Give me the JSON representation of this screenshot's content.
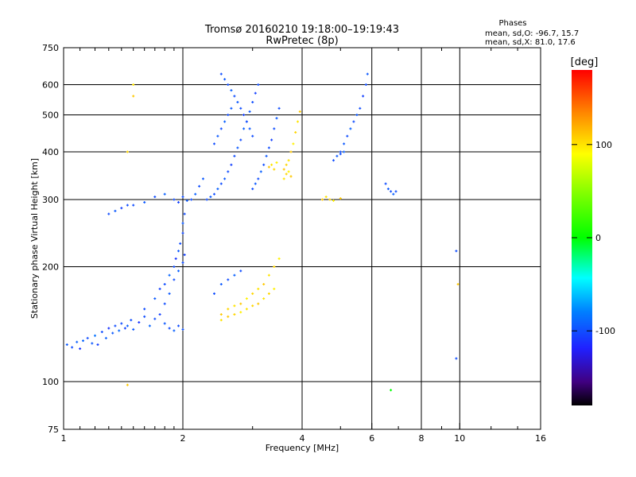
{
  "header": {
    "title_line1": "Tromsø 20160210 19:18:00–19:19:43",
    "title_line2": "RwPretec (8p)",
    "stats_title": "Phases",
    "stats_o": "mean, sd,O: -96.7, 15.7",
    "stats_x": "mean, sd,X:  81.0, 17.6"
  },
  "chart_data": {
    "type": "scatter",
    "title": "Tromsø 20160210 19:18:00–19:19:43",
    "subtitle": "RwPretec (8p)",
    "xlabel": "Frequency [MHz]",
    "ylabel": "Stationary phase Virtual Height [km]",
    "x_scale": "log",
    "y_scale": "log",
    "xlim": [
      1,
      16
    ],
    "ylim": [
      75,
      750
    ],
    "x_ticks": [
      1,
      2,
      4,
      6,
      8,
      10,
      16
    ],
    "x_tick_labels": [
      "1",
      "2",
      "4",
      "6",
      "8",
      "10",
      "16"
    ],
    "x_minor_ticks": [
      1.1,
      1.2,
      1.3,
      1.4,
      1.5,
      1.6,
      1.7,
      1.8,
      1.9,
      3,
      5,
      7,
      9,
      12,
      14
    ],
    "y_ticks": [
      75,
      100,
      200,
      300,
      400,
      500,
      600,
      750
    ],
    "y_tick_labels": [
      "75",
      "100",
      "200",
      "300",
      "400",
      "500",
      "600",
      "750"
    ],
    "grid": true,
    "colorbar": {
      "label": "[deg]",
      "range": [
        -180,
        180
      ],
      "ticks": [
        100,
        0,
        -100
      ],
      "tick_labels": [
        "100",
        "0",
        "-100"
      ]
    },
    "series": [
      {
        "name": "O-mode",
        "phase_mean": -96.7,
        "phase_sd": 15.7
      },
      {
        "name": "X-mode",
        "phase_mean": 81.0,
        "phase_sd": 17.6
      }
    ],
    "points": [
      [
        1.02,
        125,
        -95
      ],
      [
        1.05,
        123,
        -100
      ],
      [
        1.08,
        127,
        -92
      ],
      [
        1.1,
        122,
        -110
      ],
      [
        1.12,
        128,
        -90
      ],
      [
        1.15,
        130,
        -100
      ],
      [
        1.18,
        126,
        -95
      ],
      [
        1.2,
        132,
        -85
      ],
      [
        1.22,
        125,
        -105
      ],
      [
        1.25,
        135,
        -100
      ],
      [
        1.28,
        130,
        -92
      ],
      [
        1.3,
        138,
        -110
      ],
      [
        1.33,
        134,
        -95
      ],
      [
        1.35,
        140,
        -100
      ],
      [
        1.38,
        136,
        -88
      ],
      [
        1.4,
        142,
        -100
      ],
      [
        1.43,
        138,
        -105
      ],
      [
        1.45,
        140,
        -92
      ],
      [
        1.48,
        145,
        -100
      ],
      [
        1.5,
        137,
        -95
      ],
      [
        1.55,
        143,
        -110
      ],
      [
        1.6,
        148,
        -100
      ],
      [
        1.65,
        140,
        -90
      ],
      [
        1.7,
        146,
        -100
      ],
      [
        1.75,
        150,
        -105
      ],
      [
        1.8,
        142,
        -95
      ],
      [
        1.85,
        138,
        -100
      ],
      [
        1.9,
        136,
        -92
      ],
      [
        1.95,
        140,
        -100
      ],
      [
        2.0,
        137,
        -98
      ],
      [
        1.6,
        155,
        -100
      ],
      [
        1.7,
        165,
        -95
      ],
      [
        1.75,
        175,
        -105
      ],
      [
        1.8,
        180,
        -100
      ],
      [
        1.85,
        190,
        -90
      ],
      [
        1.9,
        200,
        -100
      ],
      [
        1.92,
        210,
        -110
      ],
      [
        1.95,
        220,
        -95
      ],
      [
        1.97,
        230,
        -100
      ],
      [
        2.0,
        245,
        -102
      ],
      [
        2.0,
        260,
        -95
      ],
      [
        2.02,
        275,
        -100
      ],
      [
        1.8,
        160,
        -100
      ],
      [
        1.85,
        170,
        -95
      ],
      [
        1.9,
        185,
        -100
      ],
      [
        1.95,
        195,
        -92
      ],
      [
        2.0,
        205,
        -100
      ],
      [
        2.02,
        215,
        -105
      ],
      [
        1.5,
        290,
        -100
      ],
      [
        1.6,
        295,
        -95
      ],
      [
        1.7,
        305,
        -100
      ],
      [
        1.8,
        310,
        -92
      ],
      [
        1.9,
        300,
        -100
      ],
      [
        1.95,
        295,
        -105
      ],
      [
        2.0,
        305,
        -100
      ],
      [
        2.05,
        298,
        -95
      ],
      [
        2.1,
        300,
        -100
      ],
      [
        2.15,
        310,
        -92
      ],
      [
        2.2,
        325,
        -100
      ],
      [
        2.25,
        340,
        -95
      ],
      [
        1.3,
        275,
        -100
      ],
      [
        1.35,
        280,
        -95
      ],
      [
        1.4,
        285,
        -105
      ],
      [
        1.45,
        290,
        -100
      ],
      [
        2.3,
        300,
        -100
      ],
      [
        2.35,
        305,
        -95
      ],
      [
        2.4,
        310,
        -100
      ],
      [
        2.45,
        320,
        -92
      ],
      [
        2.5,
        330,
        -100
      ],
      [
        2.55,
        340,
        -95
      ],
      [
        2.6,
        355,
        -100
      ],
      [
        2.65,
        370,
        -105
      ],
      [
        2.7,
        390,
        -100
      ],
      [
        2.75,
        410,
        -95
      ],
      [
        2.8,
        430,
        -100
      ],
      [
        2.85,
        460,
        -92
      ],
      [
        2.9,
        480,
        -100
      ],
      [
        2.95,
        510,
        -95
      ],
      [
        3.0,
        540,
        -100
      ],
      [
        3.05,
        570,
        -105
      ],
      [
        3.1,
        600,
        -100
      ],
      [
        2.5,
        640,
        -100
      ],
      [
        2.55,
        620,
        -95
      ],
      [
        2.6,
        600,
        -100
      ],
      [
        2.65,
        580,
        -92
      ],
      [
        2.7,
        560,
        -100
      ],
      [
        2.75,
        540,
        -95
      ],
      [
        2.8,
        520,
        -100
      ],
      [
        2.85,
        500,
        -105
      ],
      [
        2.9,
        480,
        -100
      ],
      [
        2.95,
        460,
        -95
      ],
      [
        3.0,
        440,
        -100
      ],
      [
        2.4,
        420,
        -100
      ],
      [
        2.45,
        440,
        -95
      ],
      [
        2.5,
        460,
        -100
      ],
      [
        2.55,
        480,
        -92
      ],
      [
        2.6,
        500,
        -100
      ],
      [
        2.65,
        520,
        -95
      ],
      [
        3.0,
        320,
        -100
      ],
      [
        3.05,
        330,
        -95
      ],
      [
        3.1,
        340,
        -100
      ],
      [
        3.15,
        355,
        -92
      ],
      [
        3.2,
        370,
        -100
      ],
      [
        3.25,
        390,
        -95
      ],
      [
        3.3,
        410,
        -100
      ],
      [
        3.35,
        430,
        -105
      ],
      [
        3.4,
        460,
        -100
      ],
      [
        3.45,
        490,
        -95
      ],
      [
        3.5,
        520,
        -100
      ],
      [
        3.6,
        360,
        110
      ],
      [
        3.65,
        370,
        105
      ],
      [
        3.7,
        380,
        100
      ],
      [
        3.75,
        400,
        110
      ],
      [
        3.8,
        420,
        95
      ],
      [
        3.85,
        450,
        105
      ],
      [
        3.9,
        480,
        100
      ],
      [
        3.95,
        510,
        110
      ],
      [
        3.6,
        340,
        100
      ],
      [
        3.65,
        350,
        105
      ],
      [
        3.7,
        355,
        95
      ],
      [
        3.75,
        345,
        110
      ],
      [
        3.3,
        365,
        110
      ],
      [
        3.35,
        370,
        100
      ],
      [
        3.4,
        360,
        105
      ],
      [
        3.45,
        375,
        95
      ],
      [
        2.5,
        150,
        110
      ],
      [
        2.6,
        155,
        105
      ],
      [
        2.7,
        158,
        100
      ],
      [
        2.8,
        160,
        110
      ],
      [
        2.9,
        165,
        95
      ],
      [
        3.0,
        170,
        105
      ],
      [
        3.1,
        175,
        100
      ],
      [
        3.2,
        180,
        110
      ],
      [
        3.3,
        190,
        100
      ],
      [
        3.4,
        200,
        105
      ],
      [
        3.5,
        210,
        95
      ],
      [
        2.5,
        145,
        100
      ],
      [
        2.6,
        148,
        110
      ],
      [
        2.7,
        150,
        105
      ],
      [
        2.8,
        152,
        95
      ],
      [
        2.9,
        155,
        100
      ],
      [
        3.0,
        158,
        105
      ],
      [
        3.1,
        160,
        110
      ],
      [
        3.2,
        165,
        100
      ],
      [
        3.3,
        170,
        105
      ],
      [
        3.4,
        175,
        95
      ],
      [
        2.4,
        170,
        -100
      ],
      [
        2.5,
        180,
        -95
      ],
      [
        2.6,
        185,
        -100
      ],
      [
        2.7,
        190,
        -92
      ],
      [
        2.8,
        195,
        -100
      ],
      [
        5.0,
        400,
        -100
      ],
      [
        5.1,
        420,
        -95
      ],
      [
        5.2,
        440,
        -100
      ],
      [
        5.3,
        460,
        -92
      ],
      [
        5.4,
        480,
        -100
      ],
      [
        5.5,
        500,
        -95
      ],
      [
        5.6,
        520,
        -100
      ],
      [
        5.7,
        560,
        -105
      ],
      [
        5.8,
        600,
        -100
      ],
      [
        5.85,
        640,
        -95
      ],
      [
        4.8,
        380,
        -100
      ],
      [
        4.9,
        390,
        -95
      ],
      [
        5.0,
        395,
        -100
      ],
      [
        5.1,
        400,
        -92
      ],
      [
        4.5,
        300,
        110
      ],
      [
        4.6,
        305,
        100
      ],
      [
        4.7,
        300,
        105
      ],
      [
        4.8,
        298,
        95
      ],
      [
        5.0,
        302,
        110
      ],
      [
        6.5,
        330,
        -100
      ],
      [
        6.6,
        320,
        -95
      ],
      [
        6.7,
        315,
        -100
      ],
      [
        6.8,
        310,
        -92
      ],
      [
        6.9,
        315,
        -100
      ],
      [
        1.5,
        560,
        110
      ],
      [
        1.5,
        600,
        100
      ],
      [
        1.45,
        400,
        105
      ],
      [
        9.8,
        220,
        -100
      ],
      [
        9.9,
        180,
        110
      ],
      [
        9.8,
        115,
        -100
      ],
      [
        1.45,
        98,
        110
      ],
      [
        6.7,
        95,
        0
      ]
    ]
  }
}
